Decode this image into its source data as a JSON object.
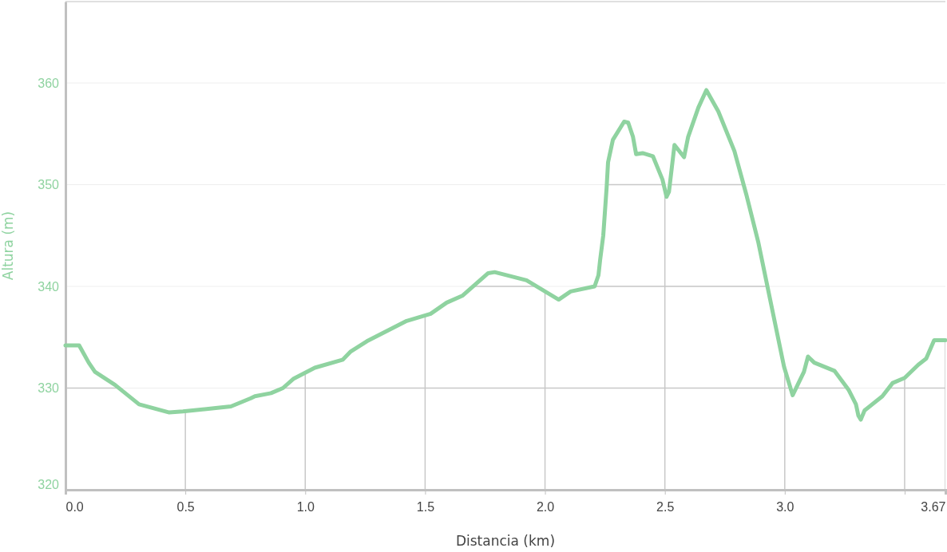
{
  "chart_data": {
    "type": "line",
    "xlabel": "Distancia (km)",
    "ylabel": "Altura (m)",
    "xlim": [
      0,
      3.67
    ],
    "xticks": [
      {
        "value": 0,
        "label": "0.0"
      },
      {
        "value": 0.5,
        "label": "0.5"
      },
      {
        "value": 1,
        "label": "1.0"
      },
      {
        "value": 1.5,
        "label": "1.5"
      },
      {
        "value": 2,
        "label": "2.0"
      },
      {
        "value": 2.5,
        "label": "2.5"
      },
      {
        "value": 3,
        "label": "3.0"
      },
      {
        "value": 3.5,
        "label": null
      },
      3.67
    ],
    "ylim": [
      320,
      368
    ],
    "yticks": [
      320,
      330,
      340,
      350,
      360
    ],
    "grid": true,
    "marker": "none",
    "line_style": "solid",
    "series": [
      {
        "color": "#8fd3a0",
        "x": [
          0,
          0.057,
          0.097,
          0.123,
          0.207,
          0.307,
          0.433,
          0.49,
          0.69,
          0.773,
          0.79,
          0.857,
          0.907,
          0.95,
          1.04,
          1.157,
          1.19,
          1.257,
          1.423,
          1.523,
          1.59,
          1.657,
          1.763,
          1.79,
          1.923,
          2.057,
          2.107,
          2.207,
          2.223,
          2.23,
          2.243,
          2.257,
          2.263,
          2.283,
          2.33,
          2.347,
          2.367,
          2.38,
          2.407,
          2.45,
          2.49,
          2.507,
          2.517,
          2.54,
          2.58,
          2.597,
          2.64,
          2.673,
          2.723,
          2.79,
          2.84,
          2.89,
          2.997,
          3.033,
          3.08,
          3.097,
          3.123,
          3.207,
          3.267,
          3.297,
          3.307,
          3.317,
          3.333,
          3.407,
          3.45,
          3.5,
          3.557,
          3.59,
          3.623,
          3.67
        ],
        "values": [
          334.2,
          334.2,
          332.5,
          331.6,
          330.3,
          328.4,
          327.6,
          327.7,
          328.2,
          329.0,
          329.2,
          329.5,
          330.0,
          330.9,
          332.0,
          332.8,
          333.6,
          334.6,
          336.6,
          337.3,
          338.4,
          339.1,
          341.3,
          341.4,
          340.6,
          338.7,
          339.5,
          340.0,
          341.1,
          342.6,
          345.0,
          349.7,
          352.2,
          354.4,
          356.2,
          356.1,
          354.7,
          353.0,
          353.1,
          352.8,
          350.5,
          348.8,
          349.3,
          353.9,
          352.7,
          354.7,
          357.6,
          359.3,
          357.2,
          353.3,
          349.0,
          344.3,
          332.1,
          329.3,
          331.6,
          333.1,
          332.5,
          331.7,
          329.8,
          328.4,
          327.3,
          326.9,
          327.8,
          329.2,
          330.5,
          331.0,
          332.3,
          332.9,
          334.7,
          334.7
        ]
      }
    ]
  }
}
